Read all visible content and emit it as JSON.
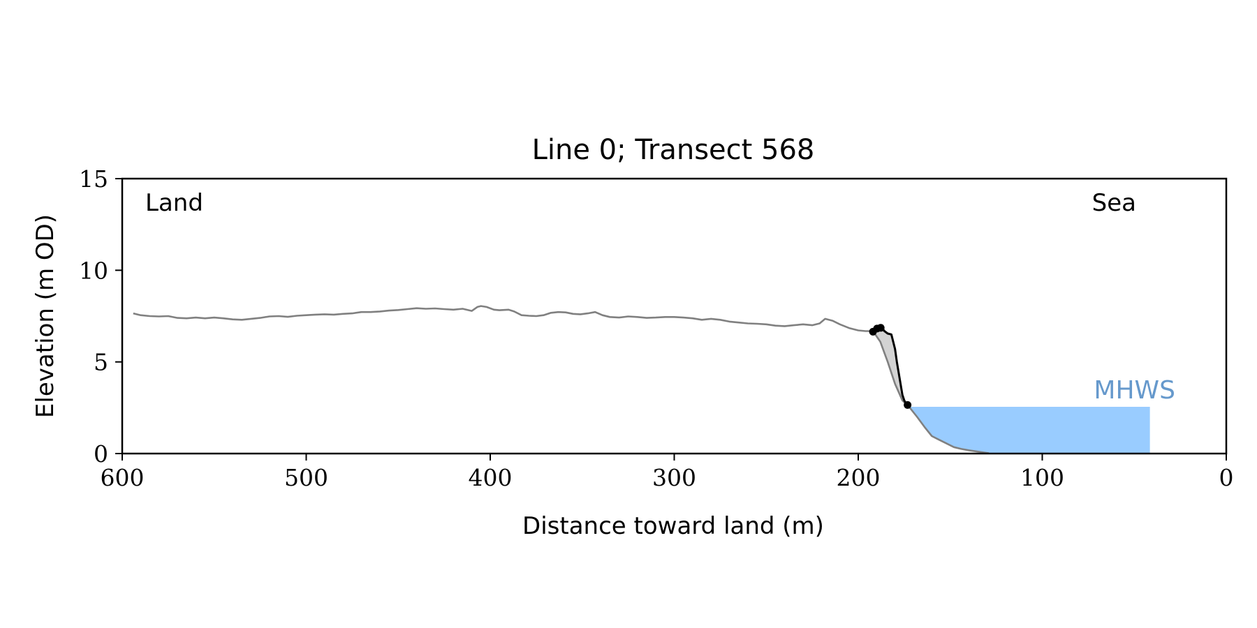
{
  "chart_data": {
    "type": "line",
    "title": "Line 0; Transect 568",
    "xlabel": "Distance toward land (m)",
    "ylabel": "Elevation (m OD)",
    "xlim": [
      600,
      0
    ],
    "ylim": [
      0,
      15
    ],
    "x_ticks": [
      600,
      500,
      400,
      300,
      200,
      100,
      0
    ],
    "y_ticks": [
      0,
      5,
      10,
      15
    ],
    "grid": false,
    "annotations": {
      "land": "Land",
      "sea": "Sea",
      "mhws": "MHWS"
    },
    "mhws": {
      "level": 2.55,
      "x_from": 172,
      "x_to": 41.5
    },
    "series": [
      {
        "role": "profile",
        "color": "#808080",
        "x": [
          594,
          590,
          585,
          580,
          575,
          570,
          565,
          560,
          555,
          550,
          545,
          540,
          535,
          530,
          525,
          520,
          515,
          510,
          505,
          500,
          495,
          490,
          485,
          480,
          475,
          470,
          465,
          460,
          455,
          450,
          445,
          440,
          435,
          430,
          425,
          420,
          415,
          410,
          407,
          405,
          402,
          398,
          395,
          390,
          387,
          383,
          379,
          375,
          371,
          367,
          363,
          359,
          355,
          351,
          347,
          343,
          339,
          335,
          330,
          325,
          320,
          315,
          310,
          305,
          300,
          295,
          290,
          285,
          280,
          275,
          270,
          265,
          260,
          255,
          250,
          245,
          240,
          235,
          230,
          225,
          221,
          218,
          214,
          210,
          205,
          200,
          196,
          192,
          188,
          184,
          180,
          176,
          172,
          168,
          164,
          160,
          156,
          152,
          148,
          144,
          140,
          136,
          132,
          129
        ],
        "y": [
          7.65,
          7.55,
          7.5,
          7.48,
          7.5,
          7.4,
          7.38,
          7.42,
          7.38,
          7.42,
          7.38,
          7.32,
          7.3,
          7.35,
          7.4,
          7.48,
          7.5,
          7.46,
          7.52,
          7.55,
          7.58,
          7.6,
          7.58,
          7.62,
          7.65,
          7.72,
          7.72,
          7.75,
          7.8,
          7.83,
          7.88,
          7.93,
          7.9,
          7.92,
          7.88,
          7.85,
          7.9,
          7.78,
          8.0,
          8.05,
          8.0,
          7.85,
          7.82,
          7.85,
          7.75,
          7.55,
          7.52,
          7.5,
          7.55,
          7.68,
          7.72,
          7.7,
          7.62,
          7.6,
          7.65,
          7.72,
          7.55,
          7.45,
          7.42,
          7.48,
          7.45,
          7.4,
          7.42,
          7.45,
          7.45,
          7.42,
          7.38,
          7.3,
          7.35,
          7.3,
          7.2,
          7.15,
          7.1,
          7.08,
          7.05,
          6.98,
          6.95,
          7.0,
          7.05,
          7.0,
          7.1,
          7.35,
          7.25,
          7.05,
          6.85,
          6.72,
          6.68,
          6.68,
          6.1,
          5.0,
          3.8,
          2.9,
          2.5,
          2.0,
          1.45,
          0.95,
          0.75,
          0.55,
          0.35,
          0.25,
          0.18,
          0.12,
          0.06,
          0.02
        ]
      },
      {
        "role": "cliff",
        "color": "#000000",
        "x": [
          192,
          191,
          189,
          187,
          186,
          184,
          182,
          180,
          179,
          177,
          176,
          175,
          174,
          173
        ],
        "y": [
          6.7,
          6.85,
          6.88,
          6.9,
          6.7,
          6.55,
          6.5,
          5.7,
          5.0,
          3.8,
          3.2,
          2.9,
          2.72,
          2.65
        ]
      }
    ],
    "markers": {
      "color": "#000000",
      "points": [
        {
          "x": 192,
          "y": 6.65
        },
        {
          "x": 189.8,
          "y": 6.82
        },
        {
          "x": 187.8,
          "y": 6.86
        },
        {
          "x": 173.2,
          "y": 2.65
        }
      ]
    },
    "shaded_region": {
      "color": "#d3d3d3",
      "x_from": 192,
      "x_to": 173
    },
    "colors": {
      "mhws_fill": "#99ccff",
      "mhws_text": "#6699cc",
      "axis": "#000000"
    }
  }
}
